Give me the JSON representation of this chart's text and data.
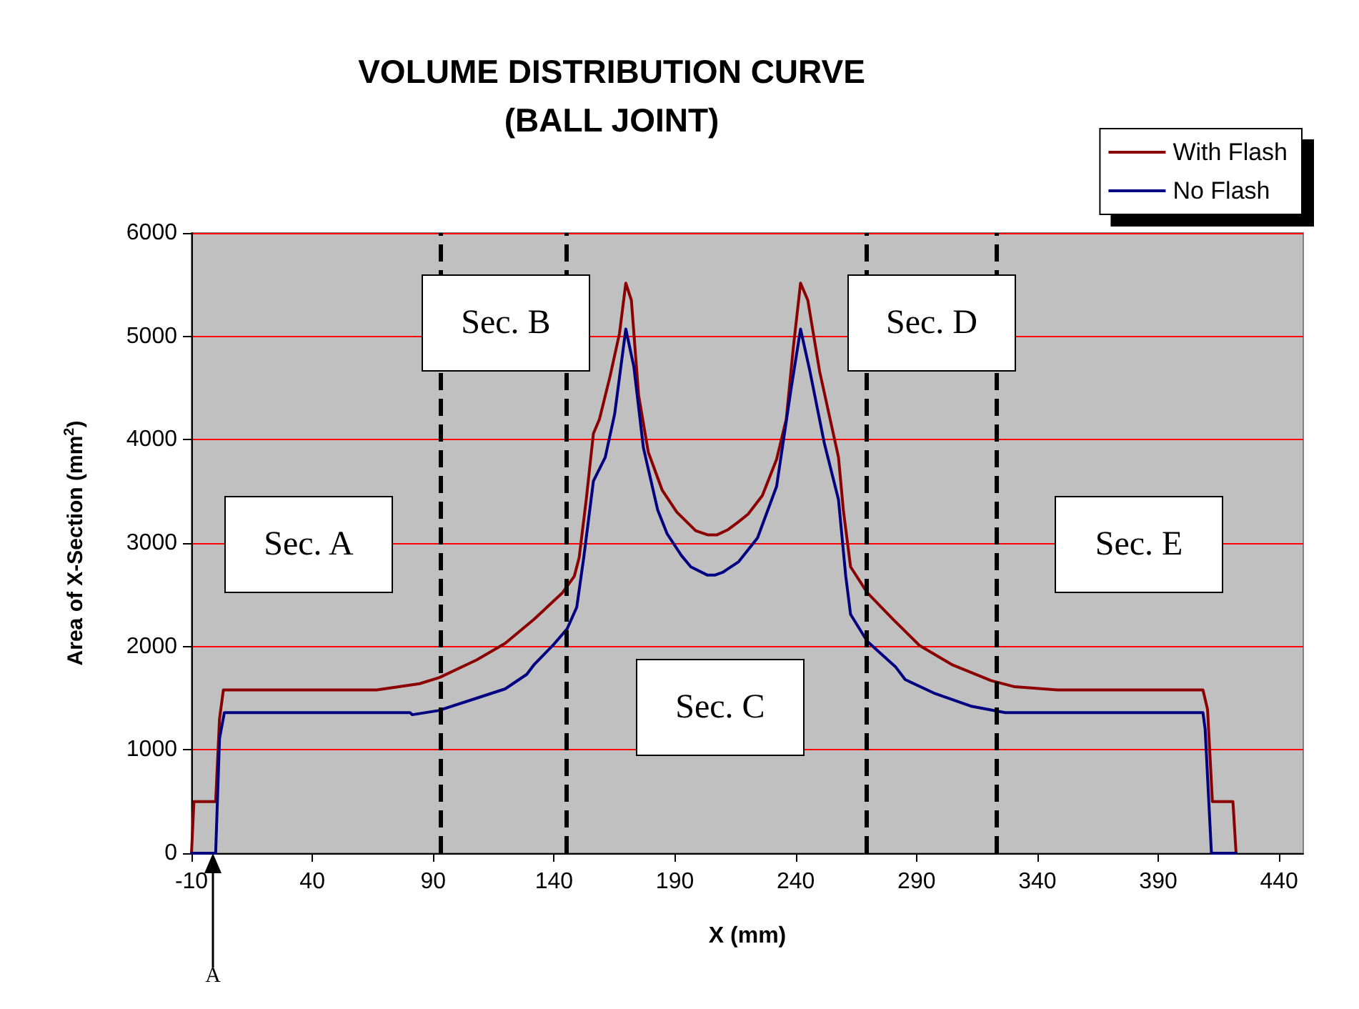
{
  "chart_data": {
    "type": "line",
    "title": "VOLUME DISTRIBUTION CURVE\n(BALL JOINT)",
    "xlabel": "X (mm)",
    "ylabel": "Area of X-Section (mm$^{2}$)",
    "xlim": [
      -10,
      450
    ],
    "xticks": [
      -10,
      40,
      90,
      140,
      190,
      240,
      290,
      340,
      390,
      440
    ],
    "ylim": [
      0,
      6000
    ],
    "yticks": [
      0,
      1000,
      2000,
      3000,
      4000,
      5000,
      6000
    ],
    "grid": "y",
    "legend": "top right",
    "marker": "none",
    "line_style": "solid",
    "series": [
      {
        "name": "With Flash",
        "color": "#8b0000",
        "x": [
          -10,
          -9,
          0,
          1.6,
          3.2,
          66.6,
          84.4,
          92.6,
          108,
          119.8,
          131.6,
          143.5,
          148.4,
          150.4,
          153.3,
          156.3,
          158.8,
          163.2,
          167.1,
          169.7,
          172,
          175,
          179,
          184.8,
          190.8,
          194.7,
          198.6,
          203.5,
          207.5,
          212,
          216,
          220.3,
          226.2,
          232.1,
          236.1,
          239,
          242,
          245,
          249.9,
          257.7,
          259.7,
          262.7,
          269.6,
          280.4,
          291.2,
          305,
          320.8,
          330.6,
          348.4,
          408.5,
          410.4,
          412.4,
          420.9,
          422.2
        ],
        "values": [
          0,
          500,
          500,
          1300,
          1580,
          1580,
          1640,
          1700,
          1870,
          2030,
          2260,
          2520,
          2680,
          2860,
          3415,
          4060,
          4200,
          4615,
          5030,
          5515,
          5350,
          4430,
          3880,
          3510,
          3300,
          3210,
          3120,
          3080,
          3080,
          3130,
          3200,
          3280,
          3460,
          3810,
          4200,
          4890,
          5515,
          5350,
          4660,
          3830,
          3320,
          2770,
          2520,
          2260,
          2010,
          1820,
          1670,
          1610,
          1580,
          1580,
          1390,
          500,
          500,
          0
        ]
      },
      {
        "name": "No Flash",
        "color": "#000080",
        "x": [
          -10,
          0,
          1.6,
          3.6,
          80.4,
          81.4,
          92.2,
          108,
          119.8,
          128.7,
          131.6,
          139.5,
          145.4,
          149.4,
          152.3,
          156.3,
          161.2,
          165.1,
          169.7,
          173,
          177,
          182.9,
          186.8,
          192.7,
          196.6,
          203.5,
          206.5,
          210,
          216.4,
          224.2,
          232.1,
          238,
          242,
          245.9,
          251.8,
          257.7,
          260.7,
          262.7,
          269.6,
          281.4,
          285.3,
          297.1,
          312.9,
          326.7,
          408.5,
          409.4,
          412,
          422.2
        ],
        "values": [
          0,
          0,
          1110,
          1360,
          1360,
          1340,
          1380,
          1500,
          1590,
          1730,
          1820,
          2010,
          2170,
          2380,
          2860,
          3600,
          3830,
          4250,
          5070,
          4710,
          3920,
          3320,
          3090,
          2880,
          2770,
          2690,
          2690,
          2720,
          2820,
          3050,
          3550,
          4480,
          5070,
          4660,
          3970,
          3420,
          2680,
          2310,
          2050,
          1800,
          1680,
          1550,
          1420,
          1360,
          1360,
          1200,
          0,
          0
        ]
      }
    ],
    "ref_lines": [
      {
        "axis": "x",
        "value": 93,
        "label": null,
        "color": "#000000",
        "line_style": "dashed"
      },
      {
        "axis": "x",
        "value": 145,
        "label": null,
        "color": "#000000",
        "line_style": "dashed"
      },
      {
        "axis": "x",
        "value": 269,
        "label": null,
        "color": "#000000",
        "line_style": "dashed"
      },
      {
        "axis": "x",
        "value": 323,
        "label": null,
        "color": "#000000",
        "line_style": "dashed"
      }
    ],
    "annotations": [
      "Sec. A",
      "Sec. B",
      "Sec. C",
      "Sec. D",
      "Sec. E",
      "A"
    ]
  }
}
